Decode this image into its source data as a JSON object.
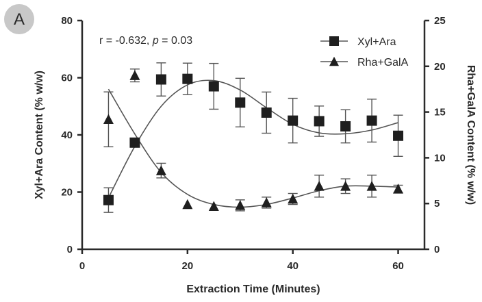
{
  "panel_label": "A",
  "chart_data": {
    "type": "scatter",
    "annotation": {
      "r_part": "r = -0.632, ",
      "p_symbol": "p",
      "p_part": " = 0.03"
    },
    "xlabel": "Extraction Time (Minutes)",
    "ylabel": "Xyl+Ara Content (% w/w)",
    "y2label": "Rha+GalA Content (% w/w)",
    "xlim": [
      0,
      65
    ],
    "ylim": [
      0,
      80
    ],
    "y2lim": [
      0,
      25
    ],
    "xticks": [
      "0",
      "20",
      "40",
      "60"
    ],
    "xtick_values": [
      0,
      20,
      40,
      60
    ],
    "yticks": [
      "0",
      "20",
      "40",
      "60",
      "80"
    ],
    "ytick_values": [
      0,
      20,
      40,
      60,
      80
    ],
    "y2ticks": [
      "0",
      "5",
      "10",
      "15",
      "20",
      "25"
    ],
    "y2tick_values": [
      0,
      5,
      10,
      15,
      20,
      25
    ],
    "legend_position": "top-right",
    "grid": false,
    "series": [
      {
        "name": "Xyl+Ara",
        "marker": "square",
        "axis": "left",
        "x": [
          5,
          10,
          15,
          20,
          25,
          30,
          35,
          40,
          45,
          50,
          55,
          60
        ],
        "y": [
          17.2,
          37.3,
          59.4,
          59.6,
          57.0,
          51.3,
          47.8,
          45.0,
          44.8,
          43.0,
          45.0,
          39.7
        ],
        "err": [
          4.3,
          0,
          5.8,
          5.5,
          8.0,
          8.5,
          7.2,
          7.8,
          5.3,
          5.8,
          7.5,
          7.2
        ],
        "fit_x": [
          5,
          10,
          15,
          20,
          25,
          30,
          35,
          40,
          45,
          50,
          55,
          60
        ],
        "fit_y": [
          18.0,
          36.0,
          50.0,
          57.5,
          59.0,
          55.7,
          49.5,
          43.7,
          40.7,
          40.4,
          41.7,
          44.3
        ]
      },
      {
        "name": "Rha+GalA",
        "marker": "triangle",
        "axis": "right",
        "x": [
          5,
          10,
          15,
          20,
          25,
          30,
          35,
          40,
          45,
          50,
          55,
          60
        ],
        "y": [
          14.2,
          19.0,
          8.6,
          4.9,
          4.7,
          4.8,
          5.1,
          5.5,
          6.9,
          6.9,
          6.9,
          6.6
        ],
        "err": [
          3.0,
          0.7,
          0.8,
          0,
          0,
          0.6,
          0.6,
          0.6,
          1.2,
          0.8,
          1.2,
          0.4
        ],
        "fit_x": [
          5,
          10,
          15,
          20,
          25,
          30,
          35,
          40,
          45,
          50,
          55,
          60
        ],
        "fit_y": [
          17.5,
          12.6,
          8.4,
          6.0,
          4.9,
          4.6,
          4.9,
          5.6,
          6.4,
          6.9,
          6.9,
          6.8
        ]
      }
    ]
  },
  "style": {
    "ink": "#2a2a2a",
    "marker": "#1f1f1f",
    "curve": "#555555",
    "badge": "#c8c8c8"
  }
}
